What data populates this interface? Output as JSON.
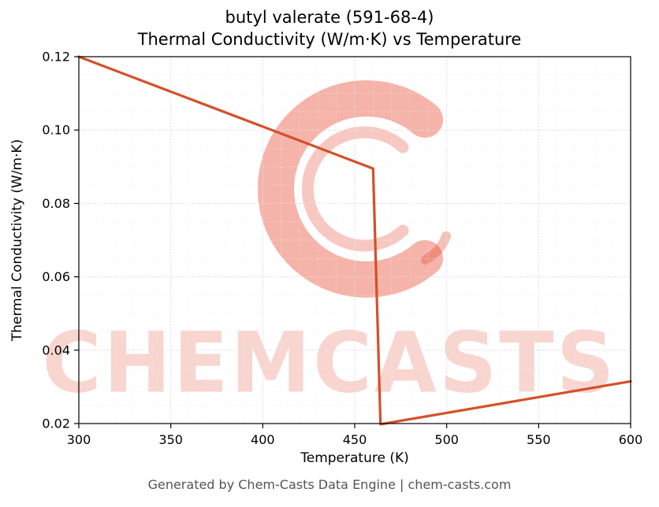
{
  "title": {
    "line1": "butyl valerate (591-68-4)",
    "line2": "Thermal Conductivity (W/m·K) vs Temperature"
  },
  "watermark": {
    "text": "CHEMCASTS",
    "text_color": "#e8503a",
    "logo_color": "#e64a32"
  },
  "footer": {
    "text": "Generated by Chem-Casts Data Engine | chem-casts.com"
  },
  "chart_data": {
    "type": "line",
    "title": "butyl valerate (591-68-4) Thermal Conductivity (W/m·K) vs Temperature",
    "xlabel": "Temperature (K)",
    "ylabel": "Thermal Conductivity (W/m·K)",
    "xlim": [
      300,
      600
    ],
    "ylim": [
      0.02,
      0.12
    ],
    "x_ticks": [
      300,
      350,
      400,
      450,
      500,
      550,
      600
    ],
    "x_tick_labels": [
      "300",
      "350",
      "400",
      "450",
      "500",
      "550",
      "600"
    ],
    "y_ticks": [
      0.02,
      0.04,
      0.06,
      0.08,
      0.1,
      0.12
    ],
    "y_tick_labels": [
      "0.02",
      "0.04",
      "0.06",
      "0.08",
      "0.10",
      "0.12"
    ],
    "grid": true,
    "legend": false,
    "line_color": "#d4502a",
    "series": [
      {
        "name": "thermal-conductivity",
        "points": [
          [
            300,
            0.12
          ],
          [
            460,
            0.0895
          ],
          [
            464,
            0.0198
          ],
          [
            600,
            0.0315
          ]
        ]
      }
    ]
  }
}
